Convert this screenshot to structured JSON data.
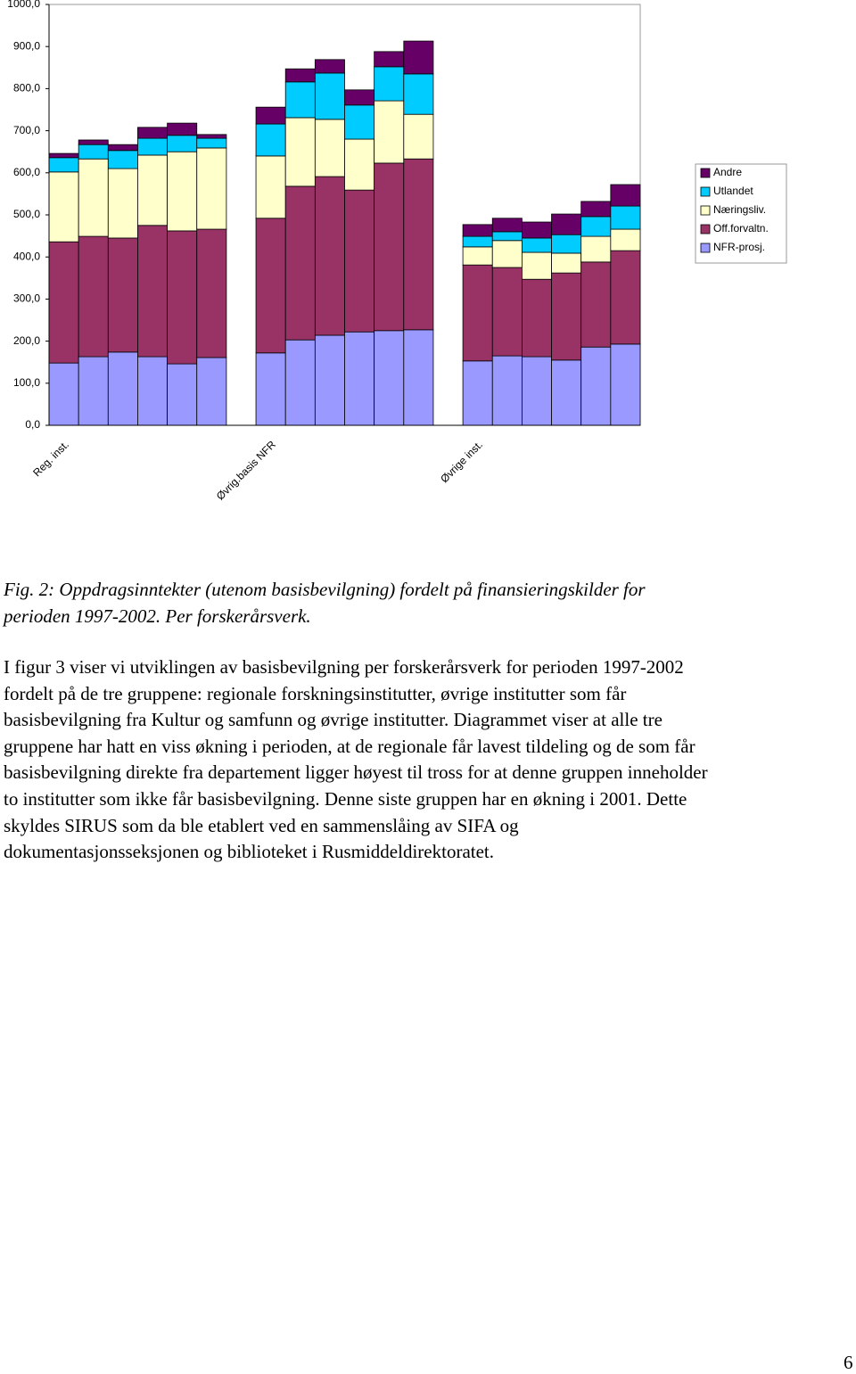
{
  "chart_data": {
    "type": "stacked_bar",
    "categories": [
      "Reg. inst.",
      null,
      null,
      null,
      null,
      null,
      null,
      "Øvrig.basis NFR",
      null,
      null,
      null,
      null,
      null,
      null,
      "Øvrige inst.",
      null,
      null,
      null,
      null,
      null
    ],
    "series": [
      {
        "name": "NFR-prosj.",
        "color": "#9999ff",
        "values": [
          148,
          163,
          174,
          163,
          146,
          161,
          null,
          172,
          203,
          214,
          222,
          225,
          227,
          null,
          153,
          165,
          163,
          155,
          186,
          193
        ]
      },
      {
        "name": "Off.forvaltn.",
        "color": "#993366",
        "values": [
          288,
          286,
          271,
          312,
          316,
          305,
          null,
          320,
          365,
          377,
          337,
          398,
          406,
          null,
          228,
          210,
          184,
          207,
          202,
          222
        ]
      },
      {
        "name": "Næringsliv.",
        "color": "#ffffcc",
        "values": [
          166,
          184,
          165,
          167,
          188,
          193,
          null,
          148,
          163,
          136,
          121,
          148,
          106,
          null,
          43,
          64,
          64,
          47,
          61,
          51
        ]
      },
      {
        "name": "Utlandet",
        "color": "#00ccff",
        "values": [
          34,
          34,
          43,
          40,
          39,
          23,
          null,
          76,
          85,
          110,
          81,
          81,
          96,
          null,
          25,
          21,
          34,
          44,
          47,
          55
        ]
      },
      {
        "name": "Andre",
        "color": "#660066",
        "values": [
          10,
          11,
          14,
          26,
          29,
          9,
          null,
          40,
          31,
          32,
          36,
          36,
          78,
          null,
          28,
          32,
          38,
          49,
          36,
          51
        ]
      }
    ],
    "ylim": [
      0,
      1000
    ],
    "yticks": [
      {
        "value": 0,
        "label": "0,0"
      },
      {
        "value": 100,
        "label": "100,0"
      },
      {
        "value": 200,
        "label": "200,0"
      },
      {
        "value": 300,
        "label": "300,0"
      },
      {
        "value": 400,
        "label": "400,0"
      },
      {
        "value": 500,
        "label": "500,0"
      },
      {
        "value": 600,
        "label": "600,0"
      },
      {
        "value": 700,
        "label": "700,0"
      },
      {
        "value": 800,
        "label": "800,0"
      },
      {
        "value": 900,
        "label": "900,0"
      },
      {
        "value": 1000,
        "label": "1000,0"
      }
    ],
    "grid": false,
    "legend": "right"
  },
  "caption": [
    "Fig. 2:  Oppdragsinntekter (utenom basisbevilgning) fordelt på finansieringskilder for",
    "perioden 1997-2002. Per forskerårsverk."
  ],
  "paragraph": [
    "I figur 3 viser vi utviklingen av basisbevilgning per forskerårsverk for perioden 1997-2002",
    "fordelt på de tre gruppene: regionale forskningsinstitutter, øvrige institutter som får",
    "basisbevilgning fra Kultur og samfunn og øvrige institutter. Diagrammet viser at alle tre",
    "gruppene har hatt en viss økning i perioden, at de regionale får lavest tildeling  og de som får",
    "basisbevilgning direkte fra departement ligger høyest til tross for at denne gruppen inneholder",
    "to institutter som ikke får basisbevilgning. Denne siste gruppen har en økning i 2001. Dette",
    "skyldes SIRUS som da ble etablert ved en sammenslåing av SIFA og",
    "dokumentasjonsseksjonen og biblioteket i Rusmiddeldirektoratet."
  ],
  "page_number": "6"
}
